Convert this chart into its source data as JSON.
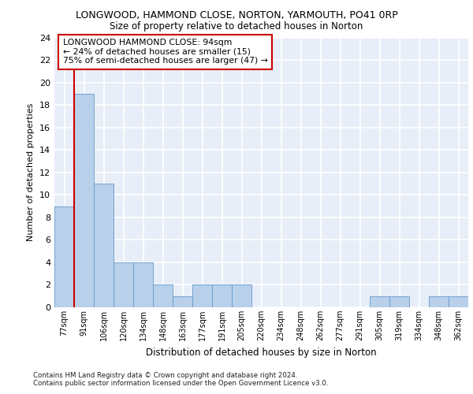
{
  "title1": "LONGWOOD, HAMMOND CLOSE, NORTON, YARMOUTH, PO41 0RP",
  "title2": "Size of property relative to detached houses in Norton",
  "xlabel": "Distribution of detached houses by size in Norton",
  "ylabel": "Number of detached properties",
  "categories": [
    "77sqm",
    "91sqm",
    "106sqm",
    "120sqm",
    "134sqm",
    "148sqm",
    "163sqm",
    "177sqm",
    "191sqm",
    "205sqm",
    "220sqm",
    "234sqm",
    "248sqm",
    "262sqm",
    "277sqm",
    "291sqm",
    "305sqm",
    "319sqm",
    "334sqm",
    "348sqm",
    "362sqm"
  ],
  "values": [
    9,
    19,
    11,
    4,
    4,
    2,
    1,
    2,
    2,
    2,
    0,
    0,
    0,
    0,
    0,
    0,
    1,
    1,
    0,
    1,
    1
  ],
  "bar_color": "#b8d0ea",
  "bar_edge_color": "#6699cc",
  "background_color": "#e8eef8",
  "grid_color": "#ffffff",
  "vline_color": "#cc0000",
  "annotation_text": "LONGWOOD HAMMOND CLOSE: 94sqm\n← 24% of detached houses are smaller (15)\n75% of semi-detached houses are larger (47) →",
  "annotation_box_color": "#ffffff",
  "annotation_box_edge": "#cc0000",
  "ylim": [
    0,
    24
  ],
  "yticks": [
    0,
    2,
    4,
    6,
    8,
    10,
    12,
    14,
    16,
    18,
    20,
    22,
    24
  ],
  "footer1": "Contains HM Land Registry data © Crown copyright and database right 2024.",
  "footer2": "Contains public sector information licensed under the Open Government Licence v3.0."
}
